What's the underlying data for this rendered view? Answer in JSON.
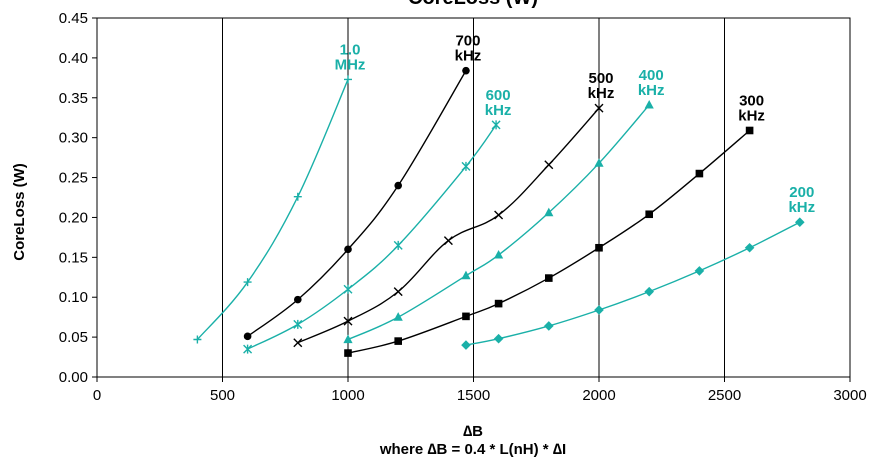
{
  "chart_data": {
    "type": "line",
    "title": "CoreLoss (W)",
    "xlabel": "∆B",
    "xlabel_sub": "where ∆B = 0.4 * L(nH) * ∆I",
    "ylabel": "CoreLoss (W)",
    "xlim": [
      0,
      3000
    ],
    "ylim": [
      0,
      0.45
    ],
    "xticks": [
      "0",
      "500",
      "1000",
      "1500",
      "2000",
      "2500",
      "3000"
    ],
    "yticks": [
      "0.00",
      "0.05",
      "0.10",
      "0.15",
      "0.20",
      "0.25",
      "0.30",
      "0.35",
      "0.40",
      "0.45"
    ],
    "grid": "vertical",
    "colors": {
      "teal": "#1ab0a8",
      "black": "#000000"
    },
    "series": [
      {
        "label_line1": "1.0",
        "label_line2": "MHz",
        "color": "#1ab0a8",
        "marker": "plus",
        "points": [
          [
            400,
            0.047
          ],
          [
            600,
            0.119
          ],
          [
            800,
            0.226
          ],
          [
            1000,
            0.373
          ]
        ]
      },
      {
        "label_line1": "700",
        "label_line2": "kHz",
        "color": "#000000",
        "marker": "circle",
        "points": [
          [
            600,
            0.051
          ],
          [
            800,
            0.097
          ],
          [
            1000,
            0.16
          ],
          [
            1200,
            0.24
          ],
          [
            1470,
            0.384
          ]
        ]
      },
      {
        "label_line1": "600",
        "label_line2": "kHz",
        "color": "#1ab0a8",
        "marker": "star",
        "points": [
          [
            600,
            0.035
          ],
          [
            800,
            0.066
          ],
          [
            1000,
            0.11
          ],
          [
            1200,
            0.165
          ],
          [
            1470,
            0.264
          ],
          [
            1590,
            0.316
          ]
        ]
      },
      {
        "label_line1": "500",
        "label_line2": "kHz",
        "color": "#000000",
        "marker": "cross",
        "points": [
          [
            800,
            0.043
          ],
          [
            1000,
            0.07
          ],
          [
            1200,
            0.107
          ],
          [
            1400,
            0.171
          ],
          [
            1600,
            0.203
          ],
          [
            1800,
            0.266
          ],
          [
            2000,
            0.337
          ]
        ]
      },
      {
        "label_line1": "400",
        "label_line2": "kHz",
        "color": "#1ab0a8",
        "marker": "triangle",
        "points": [
          [
            1000,
            0.047
          ],
          [
            1200,
            0.075
          ],
          [
            1470,
            0.127
          ],
          [
            1600,
            0.153
          ],
          [
            1800,
            0.206
          ],
          [
            2000,
            0.268
          ],
          [
            2200,
            0.341
          ]
        ]
      },
      {
        "label_line1": "300",
        "label_line2": "kHz",
        "color": "#000000",
        "marker": "square",
        "points": [
          [
            1000,
            0.03
          ],
          [
            1200,
            0.045
          ],
          [
            1470,
            0.076
          ],
          [
            1600,
            0.092
          ],
          [
            1800,
            0.124
          ],
          [
            2000,
            0.162
          ],
          [
            2200,
            0.204
          ],
          [
            2400,
            0.255
          ],
          [
            2600,
            0.309
          ]
        ]
      },
      {
        "label_line1": "200",
        "label_line2": "kHz",
        "color": "#1ab0a8",
        "marker": "diamond",
        "points": [
          [
            1470,
            0.04
          ],
          [
            1600,
            0.048
          ],
          [
            1800,
            0.064
          ],
          [
            2000,
            0.084
          ],
          [
            2200,
            0.107
          ],
          [
            2400,
            0.133
          ],
          [
            2600,
            0.162
          ],
          [
            2800,
            0.194
          ]
        ]
      }
    ]
  }
}
